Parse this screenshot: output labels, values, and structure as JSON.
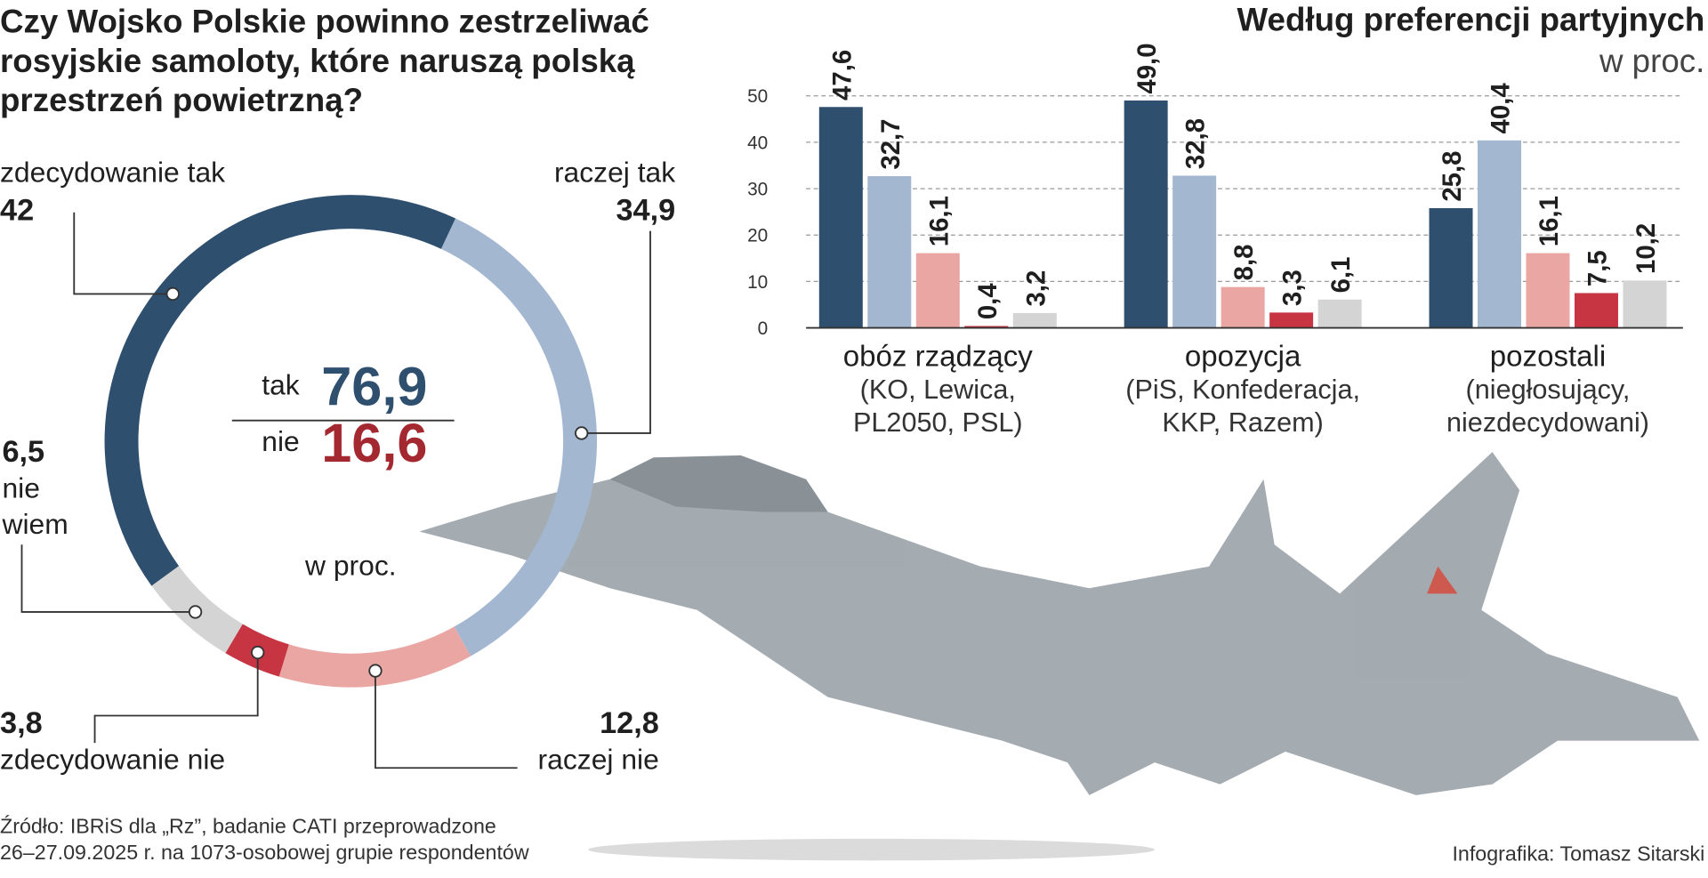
{
  "chart_data": [
    {
      "type": "donut",
      "title": [
        "Czy Wojsko Polskie powinno zestrzeliwać",
        "rosyjskie samoloty, które naruszą polską",
        "przestrzeń powietrzną?"
      ],
      "categories": [
        "zdecydowanie tak",
        "raczej tak",
        "raczej nie",
        "zdecydowanie nie",
        "nie wiem"
      ],
      "values": [
        42,
        34.9,
        12.8,
        3.8,
        6.5
      ],
      "value_labels": [
        "42",
        "34,9",
        "12,8",
        "3,8",
        "6,5"
      ],
      "colors": [
        "#2f4f6f",
        "#a3b7d1",
        "#e9a6a3",
        "#c73442",
        "#d4d4d4"
      ],
      "summary": [
        {
          "label": "tak",
          "value": 76.9,
          "value_label": "76,9",
          "color": "#2f4f6f"
        },
        {
          "label": "nie",
          "value": 16.6,
          "value_label": "16,6",
          "color": "#a3282f"
        }
      ],
      "unit": "w proc."
    },
    {
      "type": "bar",
      "title": "Według preferencji partyjnych",
      "subtitle": "w proc.",
      "categories": [
        "obóz rządzący",
        "opozycja",
        "pozostali"
      ],
      "category_notes": [
        [
          "(KO, Lewica,",
          "PL2050, PSL)"
        ],
        [
          "(PiS, Konfederacja,",
          "KKP, Razem)"
        ],
        [
          "(niegłosujący,",
          "niezdecydowani)"
        ]
      ],
      "series": [
        {
          "color": "#2f4f6f",
          "values": [
            47.6,
            49.0,
            25.8
          ],
          "value_labels": [
            "47,6",
            "49,0",
            "25,8"
          ]
        },
        {
          "color": "#a3b7d1",
          "values": [
            32.7,
            32.8,
            40.4
          ],
          "value_labels": [
            "32,7",
            "32,8",
            "40,4"
          ]
        },
        {
          "color": "#e9a6a3",
          "values": [
            16.1,
            8.8,
            16.1
          ],
          "value_labels": [
            "16,1",
            "8,8",
            "16,1"
          ]
        },
        {
          "color": "#c73442",
          "values": [
            0.4,
            3.3,
            7.5
          ],
          "value_labels": [
            "0,4",
            "3,3",
            "7,5"
          ]
        },
        {
          "color": "#d4d4d4",
          "values": [
            3.2,
            6.1,
            10.2
          ],
          "value_labels": [
            "3,2",
            "6,1",
            "10,2"
          ]
        }
      ],
      "ylim": [
        0,
        50
      ],
      "yticks": [
        0,
        10,
        20,
        30,
        40,
        50
      ],
      "grid": true
    }
  ],
  "source": [
    "Źródło: IBRiS dla „Rz”, badanie CATI przeprowadzone",
    "26–27.09.2025 r. na 1073-osobowej grupie respondentów"
  ],
  "credit": "Infografika: Tomasz Sitarski"
}
